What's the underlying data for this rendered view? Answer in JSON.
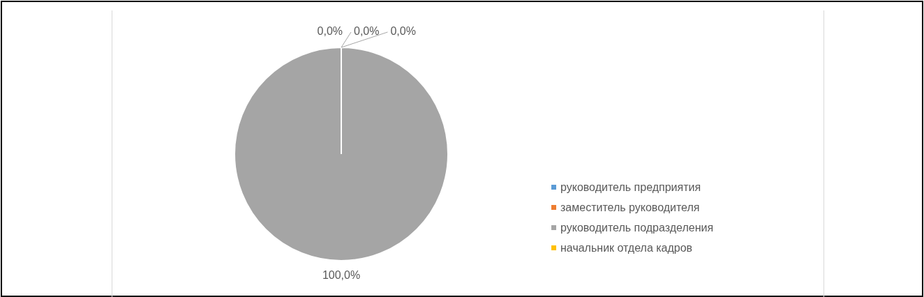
{
  "chart_data": {
    "type": "pie",
    "categories": [
      "руководитель предприятия",
      "заместитель руководителя",
      "руководитель подразделения",
      "начальник отдела кадров"
    ],
    "values": [
      0,
      0,
      100,
      0
    ],
    "colors": [
      "#5b9bd5",
      "#ed7d31",
      "#a5a5a5",
      "#ffc000"
    ],
    "value_labels": [
      "0,0%",
      "0,0%",
      "100,0%",
      "0,0%"
    ],
    "legend": "right"
  }
}
